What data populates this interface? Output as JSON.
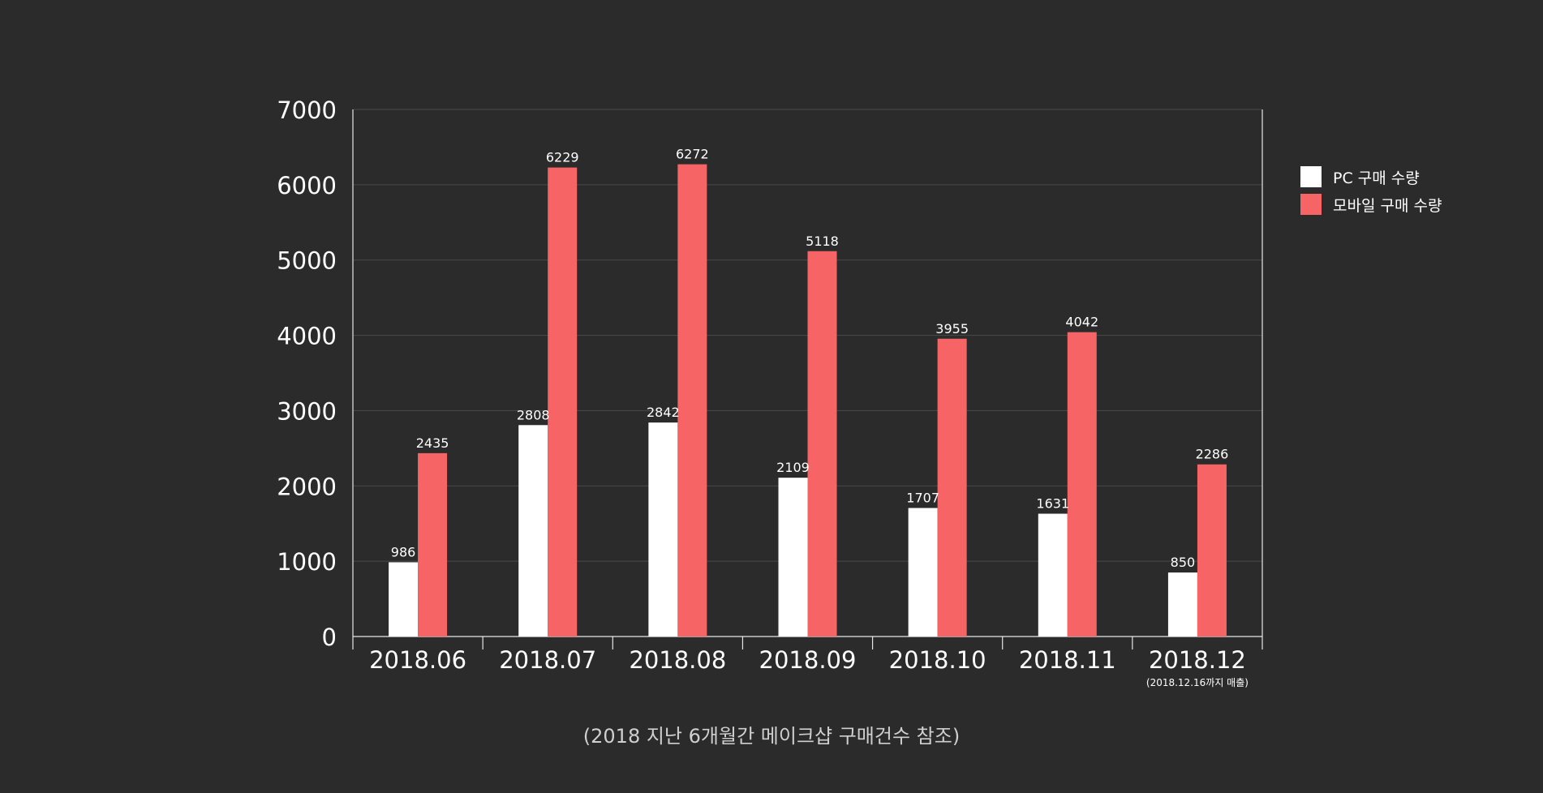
{
  "chart_data": {
    "type": "bar",
    "categories": [
      "2018.06",
      "2018.07",
      "2018.08",
      "2018.09",
      "2018.10",
      "2018.11",
      "2018.12"
    ],
    "category_notes": [
      "",
      "",
      "",
      "",
      "",
      "",
      "(2018.12.16까지 매출)"
    ],
    "series": [
      {
        "name": "PC 구매 수량",
        "color": "#ffffff",
        "values": [
          986,
          2808,
          2842,
          2109,
          1707,
          1631,
          850
        ]
      },
      {
        "name": "모바일 구매 수량",
        "color": "#f76466",
        "values": [
          2435,
          6229,
          6272,
          5118,
          3955,
          4042,
          2286
        ]
      }
    ],
    "yticks": [
      0,
      1000,
      2000,
      3000,
      4000,
      5000,
      6000,
      7000
    ],
    "ylim": [
      0,
      7000
    ],
    "grid": true,
    "legend_position": "right",
    "caption": "(2018 지난 6개월간 메이크샵 구매건수 참조)"
  }
}
